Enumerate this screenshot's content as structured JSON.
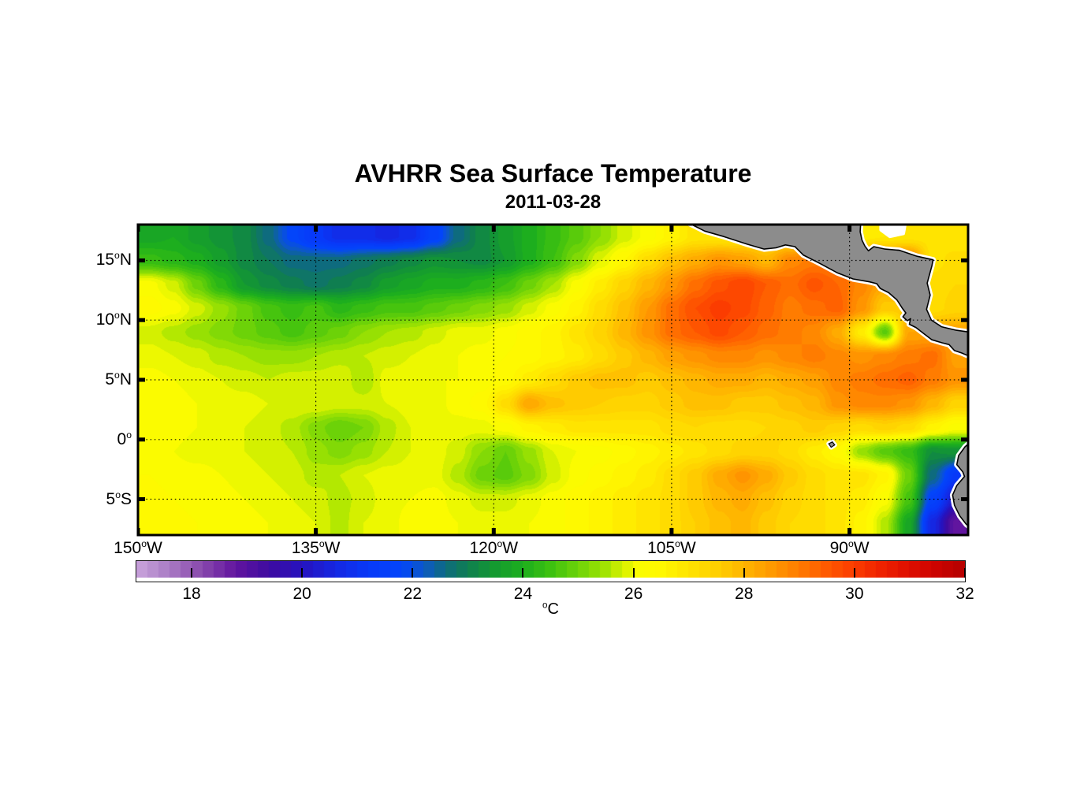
{
  "chart_data": {
    "type": "heatmap",
    "title": "AVHRR Sea Surface Temperature",
    "subtitle": "2011-03-28",
    "axes": {
      "degree_symbol": "o",
      "x_ticks": [
        {
          "num": "150",
          "dir": "W",
          "lon": -150
        },
        {
          "num": "135",
          "dir": "W",
          "lon": -135
        },
        {
          "num": "120",
          "dir": "W",
          "lon": -120
        },
        {
          "num": "105",
          "dir": "W",
          "lon": -105
        },
        {
          "num": "90",
          "dir": "W",
          "lon": -90
        }
      ],
      "y_ticks": [
        {
          "num": "15",
          "dir": "N",
          "lat": 15
        },
        {
          "num": "10",
          "dir": "N",
          "lat": 10
        },
        {
          "num": "5",
          "dir": "N",
          "lat": 5
        },
        {
          "num": "0",
          "dir": "",
          "lat": 0
        },
        {
          "num": "5",
          "dir": "S",
          "lat": -5
        }
      ],
      "domain": {
        "lon_min": -150,
        "lon_max": -80,
        "lat_min": -8,
        "lat_max": 18
      },
      "grid_on": true
    },
    "colorbar": {
      "min_c": 17,
      "max_c": 32,
      "step_c": 0.2,
      "tick_values": [
        18,
        20,
        22,
        24,
        26,
        28,
        30,
        32
      ],
      "unit_sup": "o",
      "unit_text": "C",
      "stops": [
        [
          17.0,
          "#C9A4DC"
        ],
        [
          17.6,
          "#A97BC4"
        ],
        [
          18.2,
          "#8847AC"
        ],
        [
          18.8,
          "#61159F"
        ],
        [
          19.4,
          "#3E0BA0"
        ],
        [
          20.0,
          "#2612BE"
        ],
        [
          20.6,
          "#1527E2"
        ],
        [
          21.2,
          "#0839F8"
        ],
        [
          21.8,
          "#0345FA"
        ],
        [
          22.2,
          "#0C58C8"
        ],
        [
          22.6,
          "#0E6B7E"
        ],
        [
          23.0,
          "#0F7E50"
        ],
        [
          23.5,
          "#149A30"
        ],
        [
          24.0,
          "#1DAE1E"
        ],
        [
          24.5,
          "#3DC110"
        ],
        [
          25.0,
          "#6CD208"
        ],
        [
          25.5,
          "#A2E402"
        ],
        [
          25.8,
          "#D4F000"
        ],
        [
          26.1,
          "#FAFC00"
        ],
        [
          26.5,
          "#FFF800"
        ],
        [
          27.0,
          "#FFE400"
        ],
        [
          27.5,
          "#FFD000"
        ],
        [
          28.0,
          "#FFB600"
        ],
        [
          28.5,
          "#FF9A00"
        ],
        [
          29.0,
          "#FF7C00"
        ],
        [
          29.5,
          "#FF5A00"
        ],
        [
          30.0,
          "#FB3C00"
        ],
        [
          30.5,
          "#EE2200"
        ],
        [
          31.0,
          "#DE0E00"
        ],
        [
          31.5,
          "#CB0300"
        ],
        [
          32.0,
          "#B40000"
        ]
      ]
    },
    "grid": {
      "lon": [
        -149,
        -147,
        -145,
        -143,
        -141,
        -139,
        -137,
        -135,
        -133,
        -131,
        -129,
        -127,
        -125,
        -123,
        -121,
        -119,
        -117,
        -115,
        -113,
        -111,
        -109,
        -107,
        -105,
        -103,
        -101,
        -99,
        -97,
        -95,
        -93,
        -91,
        -89,
        -87,
        -85,
        -83,
        -81
      ],
      "lat": [
        17,
        15,
        13,
        11,
        9,
        7,
        5,
        3,
        1,
        -1,
        -3,
        -5,
        -7
      ],
      "sst_c": [
        [
          23.8,
          23.9,
          23.6,
          23.4,
          23.2,
          22.6,
          21.8,
          21.2,
          20.8,
          20.8,
          20.6,
          20.8,
          21.6,
          22.6,
          23.2,
          23.6,
          24.0,
          24.4,
          24.8,
          25.3,
          25.8,
          26.2,
          26.6,
          27.0,
          null,
          null,
          null,
          null,
          null,
          null,
          26.8,
          26.9,
          27.0,
          27.0,
          26.9
        ],
        [
          24.4,
          24.2,
          24.0,
          23.6,
          23.2,
          22.9,
          22.6,
          22.6,
          22.6,
          22.8,
          23.0,
          23.2,
          23.4,
          23.3,
          23.2,
          23.5,
          24.0,
          24.5,
          25.2,
          25.9,
          26.5,
          27.2,
          27.8,
          28.2,
          28.6,
          28.4,
          28.0,
          28.8,
          29.0,
          null,
          null,
          null,
          null,
          27.0,
          27.2
        ],
        [
          26.2,
          25.8,
          25.0,
          24.2,
          23.5,
          23.2,
          23.0,
          22.8,
          23.0,
          23.2,
          23.6,
          23.8,
          24.0,
          24.0,
          24.2,
          24.5,
          25.0,
          25.5,
          26.2,
          26.8,
          27.4,
          28.0,
          28.6,
          29.2,
          29.6,
          29.9,
          29.5,
          29.2,
          29.6,
          29.3,
          28.8,
          28.2,
          null,
          27.2,
          27.3
        ],
        [
          26.4,
          26.2,
          25.8,
          25.4,
          25.0,
          24.6,
          24.4,
          24.6,
          24.2,
          24.4,
          24.6,
          24.6,
          24.8,
          25.0,
          25.2,
          25.4,
          25.8,
          26.2,
          26.6,
          27.2,
          27.8,
          28.5,
          29.2,
          29.7,
          30.0,
          29.8,
          29.4,
          29.0,
          29.2,
          29.4,
          28.6,
          27.6,
          null,
          27.2,
          27.4
        ],
        [
          25.8,
          25.6,
          25.4,
          25.2,
          25.0,
          24.8,
          24.6,
          24.8,
          25.0,
          25.3,
          25.5,
          25.6,
          25.8,
          26.0,
          26.0,
          26.2,
          26.4,
          26.6,
          27.0,
          27.4,
          28.0,
          28.6,
          29.2,
          29.5,
          29.8,
          29.5,
          29.2,
          29.0,
          28.8,
          28.2,
          26.8,
          24.8,
          28.3,
          null,
          null
        ],
        [
          26.0,
          25.9,
          25.8,
          25.6,
          25.5,
          25.4,
          25.4,
          25.5,
          25.6,
          25.7,
          25.8,
          25.9,
          26.0,
          26.1,
          26.2,
          26.3,
          26.4,
          26.6,
          26.8,
          27.2,
          27.6,
          28.0,
          28.4,
          28.6,
          28.8,
          28.8,
          28.6,
          28.8,
          29.0,
          28.8,
          28.6,
          28.8,
          29.0,
          29.2,
          28.4
        ],
        [
          26.2,
          26.1,
          26.0,
          25.9,
          25.8,
          25.7,
          25.8,
          25.8,
          25.9,
          25.5,
          26.0,
          26.0,
          26.1,
          26.1,
          26.2,
          26.4,
          26.8,
          27.2,
          27.6,
          27.8,
          27.8,
          27.6,
          27.8,
          28.0,
          28.2,
          28.2,
          28.0,
          28.2,
          28.4,
          28.8,
          29.0,
          29.2,
          29.4,
          29.0,
          28.6
        ],
        [
          26.3,
          26.2,
          26.1,
          26.0,
          26.0,
          25.9,
          25.9,
          25.9,
          25.8,
          25.8,
          25.9,
          26.0,
          26.0,
          26.2,
          26.4,
          27.2,
          28.3,
          27.8,
          27.6,
          27.5,
          27.4,
          27.4,
          27.6,
          27.8,
          27.8,
          27.6,
          27.6,
          27.8,
          28.0,
          28.6,
          28.8,
          28.8,
          28.6,
          28.0,
          27.4
        ],
        [
          26.2,
          26.2,
          26.1,
          26.0,
          25.9,
          25.8,
          25.6,
          25.2,
          24.9,
          25.1,
          25.6,
          25.9,
          26.0,
          26.0,
          26.0,
          26.2,
          26.6,
          26.8,
          27.0,
          27.0,
          27.0,
          27.0,
          27.2,
          27.3,
          27.2,
          27.2,
          27.3,
          27.4,
          27.6,
          27.4,
          27.2,
          27.4,
          27.2,
          26.6,
          26.2
        ],
        [
          26.2,
          26.1,
          26.0,
          26.0,
          25.9,
          25.8,
          25.7,
          25.4,
          25.2,
          25.4,
          25.7,
          25.9,
          26.0,
          25.8,
          25.3,
          24.9,
          25.4,
          25.9,
          26.1,
          26.2,
          26.4,
          26.6,
          26.8,
          27.0,
          27.2,
          27.4,
          27.4,
          27.2,
          26.8,
          26.4,
          25.4,
          24.8,
          24.4,
          23.3,
          23.4
        ],
        [
          26.3,
          26.2,
          26.2,
          26.1,
          26.0,
          25.9,
          25.8,
          25.6,
          25.7,
          25.9,
          26.0,
          26.0,
          26.0,
          25.6,
          25.0,
          24.8,
          25.2,
          25.8,
          26.2,
          26.4,
          26.6,
          26.8,
          27.2,
          27.6,
          28.2,
          28.6,
          28.2,
          27.6,
          27.2,
          27.0,
          27.0,
          26.6,
          25.0,
          22.6,
          21.2
        ],
        [
          26.4,
          26.3,
          26.2,
          26.2,
          26.1,
          26.0,
          25.9,
          25.8,
          25.6,
          25.8,
          26.0,
          26.1,
          26.2,
          26.0,
          25.8,
          25.8,
          26.0,
          26.2,
          26.4,
          26.6,
          26.8,
          27.0,
          27.2,
          27.6,
          28.0,
          28.2,
          27.8,
          27.4,
          27.2,
          27.0,
          26.8,
          26.2,
          24.6,
          21.6,
          20.2
        ],
        [
          26.5,
          26.4,
          26.3,
          26.2,
          26.2,
          26.1,
          26.0,
          25.9,
          25.6,
          25.9,
          26.0,
          26.2,
          26.2,
          26.1,
          26.0,
          26.0,
          26.1,
          26.2,
          26.4,
          26.6,
          26.8,
          27.0,
          27.2,
          27.5,
          27.8,
          28.0,
          27.6,
          27.3,
          27.2,
          27.0,
          26.6,
          25.6,
          23.8,
          20.6,
          18.8
        ]
      ]
    },
    "land": {
      "fill": "#8C8C8C",
      "outline": "#000000",
      "coast_fringe": "#FFFFFF",
      "polygons": {
        "central_america": [
          [
            -103.9,
            18.3
          ],
          [
            -102.2,
            17.45
          ],
          [
            -100.6,
            17.0
          ],
          [
            -98.6,
            16.35
          ],
          [
            -97.2,
            15.95
          ],
          [
            -96.2,
            16.05
          ],
          [
            -95.4,
            16.3
          ],
          [
            -94.6,
            16.15
          ],
          [
            -93.9,
            15.45
          ],
          [
            -92.5,
            14.75
          ],
          [
            -91.0,
            13.95
          ],
          [
            -89.7,
            13.45
          ],
          [
            -88.3,
            13.2
          ],
          [
            -87.7,
            13.05
          ],
          [
            -87.4,
            12.65
          ],
          [
            -86.7,
            12.3
          ],
          [
            -86.0,
            11.7
          ],
          [
            -85.55,
            11.0
          ],
          [
            -85.25,
            10.6
          ],
          [
            -85.5,
            10.28
          ],
          [
            -85.12,
            9.95
          ],
          [
            -84.85,
            10.12
          ],
          [
            -84.95,
            9.65
          ],
          [
            -84.4,
            9.38
          ],
          [
            -83.7,
            8.85
          ],
          [
            -83.05,
            8.35
          ],
          [
            -82.2,
            8.1
          ],
          [
            -81.6,
            7.95
          ],
          [
            -81.15,
            7.45
          ],
          [
            -80.55,
            7.25
          ],
          [
            -79.6,
            6.85
          ],
          [
            -79.6,
            8.95
          ],
          [
            -81.0,
            9.15
          ],
          [
            -82.25,
            9.45
          ],
          [
            -83.1,
            10.0
          ],
          [
            -83.5,
            10.9
          ],
          [
            -83.2,
            12.1
          ],
          [
            -83.45,
            13.1
          ],
          [
            -83.05,
            14.55
          ],
          [
            -82.95,
            15.05
          ],
          [
            -84.3,
            15.35
          ],
          [
            -85.8,
            15.85
          ],
          [
            -87.0,
            15.95
          ],
          [
            -87.95,
            16.15
          ],
          [
            -88.4,
            15.8
          ],
          [
            -88.7,
            16.2
          ],
          [
            -88.95,
            16.7
          ],
          [
            -89.1,
            17.4
          ],
          [
            -89.05,
            18.3
          ]
        ],
        "south_america": [
          [
            -79.6,
            -0.05
          ],
          [
            -80.25,
            -0.6
          ],
          [
            -80.8,
            -1.35
          ],
          [
            -80.95,
            -2.1
          ],
          [
            -80.45,
            -2.7
          ],
          [
            -80.3,
            -3.1
          ],
          [
            -80.95,
            -3.85
          ],
          [
            -81.3,
            -4.65
          ],
          [
            -81.15,
            -5.5
          ],
          [
            -80.7,
            -6.4
          ],
          [
            -80.15,
            -7.1
          ],
          [
            -79.6,
            -7.55
          ]
        ],
        "galapagos": [
          [
            -91.75,
            -0.35
          ],
          [
            -91.45,
            -0.2
          ],
          [
            -91.25,
            -0.45
          ],
          [
            -91.55,
            -0.65
          ]
        ]
      },
      "no_data_patches": [
        [
          [
            -87.35,
            18.1
          ],
          [
            -85.3,
            18.1
          ],
          [
            -85.45,
            17.25
          ],
          [
            -86.6,
            17.0
          ],
          [
            -87.35,
            17.55
          ]
        ]
      ]
    }
  }
}
